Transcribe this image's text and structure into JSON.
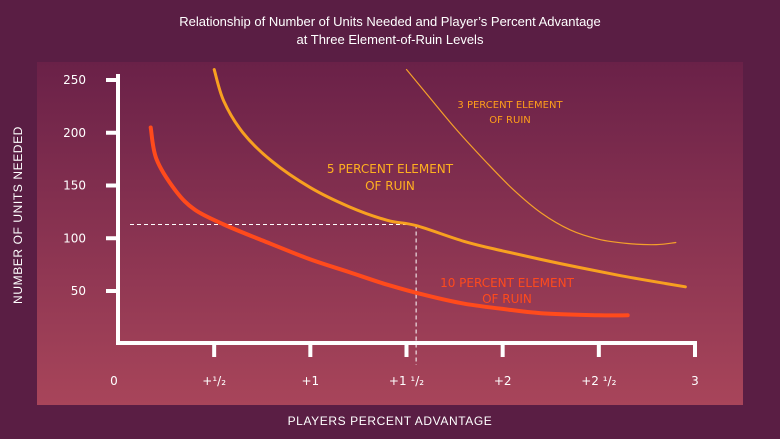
{
  "chart_data": {
    "type": "line",
    "title": [
      "Relationship of Number of Units Needed and Player’s Percent Advantage",
      "at Three Element-of-Ruin Levels"
    ],
    "xlabel": "PLAYERS PERCENT ADVANTAGE",
    "ylabel": "NUMBER OF UNITS NEEDED",
    "xlim": [
      0,
      3
    ],
    "ylim": [
      0,
      250
    ],
    "x_ticks": [
      {
        "value": 0,
        "label": "0"
      },
      {
        "value": 0.5,
        "label": "+¹/₂"
      },
      {
        "value": 1,
        "label": "+1"
      },
      {
        "value": 1.5,
        "label": "+1 ¹/₂"
      },
      {
        "value": 2,
        "label": "+2"
      },
      {
        "value": 2.5,
        "label": "+2 ¹/₂"
      },
      {
        "value": 3,
        "label": "3"
      }
    ],
    "y_ticks": [
      {
        "value": 50,
        "label": "50"
      },
      {
        "value": 100,
        "label": "100"
      },
      {
        "value": 150,
        "label": "150"
      },
      {
        "value": 200,
        "label": "200"
      },
      {
        "value": 250,
        "label": "250"
      }
    ],
    "grid": false,
    "reference": {
      "x": 1.55,
      "y": 113
    },
    "series": [
      {
        "name": "3 PERCENT ELEMENT OF RUIN",
        "label_lines": [
          "3 PERCENT ELEMENT",
          "OF RUIN"
        ],
        "color": "#f5a02a",
        "width": 1.2,
        "points": [
          [
            1.5,
            260
          ],
          [
            1.6,
            238
          ],
          [
            1.75,
            205
          ],
          [
            1.9,
            175
          ],
          [
            2.05,
            147
          ],
          [
            2.2,
            124
          ],
          [
            2.35,
            108
          ],
          [
            2.5,
            99
          ],
          [
            2.65,
            95
          ],
          [
            2.8,
            94
          ],
          [
            2.9,
            96
          ]
        ]
      },
      {
        "name": "5 PERCENT ELEMENT OF RUIN",
        "label_lines": [
          "5 PERCENT ELEMENT",
          "OF RUIN"
        ],
        "color": "#f8a020",
        "width": 3,
        "points": [
          [
            0.5,
            260
          ],
          [
            0.55,
            230
          ],
          [
            0.65,
            200
          ],
          [
            0.8,
            173
          ],
          [
            1.0,
            148
          ],
          [
            1.2,
            130
          ],
          [
            1.4,
            117
          ],
          [
            1.55,
            112
          ],
          [
            1.8,
            97
          ],
          [
            2.0,
            88
          ],
          [
            2.3,
            76
          ],
          [
            2.6,
            65
          ],
          [
            2.85,
            57
          ],
          [
            2.95,
            54
          ]
        ]
      },
      {
        "name": "10 PERCENT ELEMENT OF RUIN",
        "label_lines": [
          "10 PERCENT ELEMENT",
          "OF RUIN"
        ],
        "color": "#ff4a1c",
        "width": 4,
        "points": [
          [
            0.17,
            205
          ],
          [
            0.2,
            175
          ],
          [
            0.3,
            145
          ],
          [
            0.4,
            127
          ],
          [
            0.55,
            113
          ],
          [
            0.75,
            98
          ],
          [
            1.0,
            80
          ],
          [
            1.2,
            68
          ],
          [
            1.4,
            56
          ],
          [
            1.6,
            46
          ],
          [
            1.8,
            38
          ],
          [
            2.0,
            33
          ],
          [
            2.2,
            29
          ],
          [
            2.5,
            27
          ],
          [
            2.65,
            27
          ]
        ]
      }
    ]
  }
}
